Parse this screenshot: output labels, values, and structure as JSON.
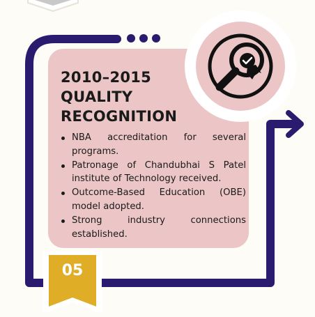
{
  "milestone": {
    "year": "2010–2015",
    "title": "QUALITY RECOGNITION",
    "bullets": [
      "NBA accreditation for several programs.",
      "Patronage of Chandubhai S Patel institute of Technology received.",
      "Outcome-Based Education (OBE) model adopted.",
      "Strong industry connections established."
    ],
    "step_number": "05",
    "icon": "magnifier-with-award-ribbon-icon"
  },
  "colors": {
    "background": "#fdfcf6",
    "connector": "#2a1b6e",
    "card": "#ecc6c6",
    "badge": "#e0ad26",
    "text": "#1a1a1a"
  }
}
